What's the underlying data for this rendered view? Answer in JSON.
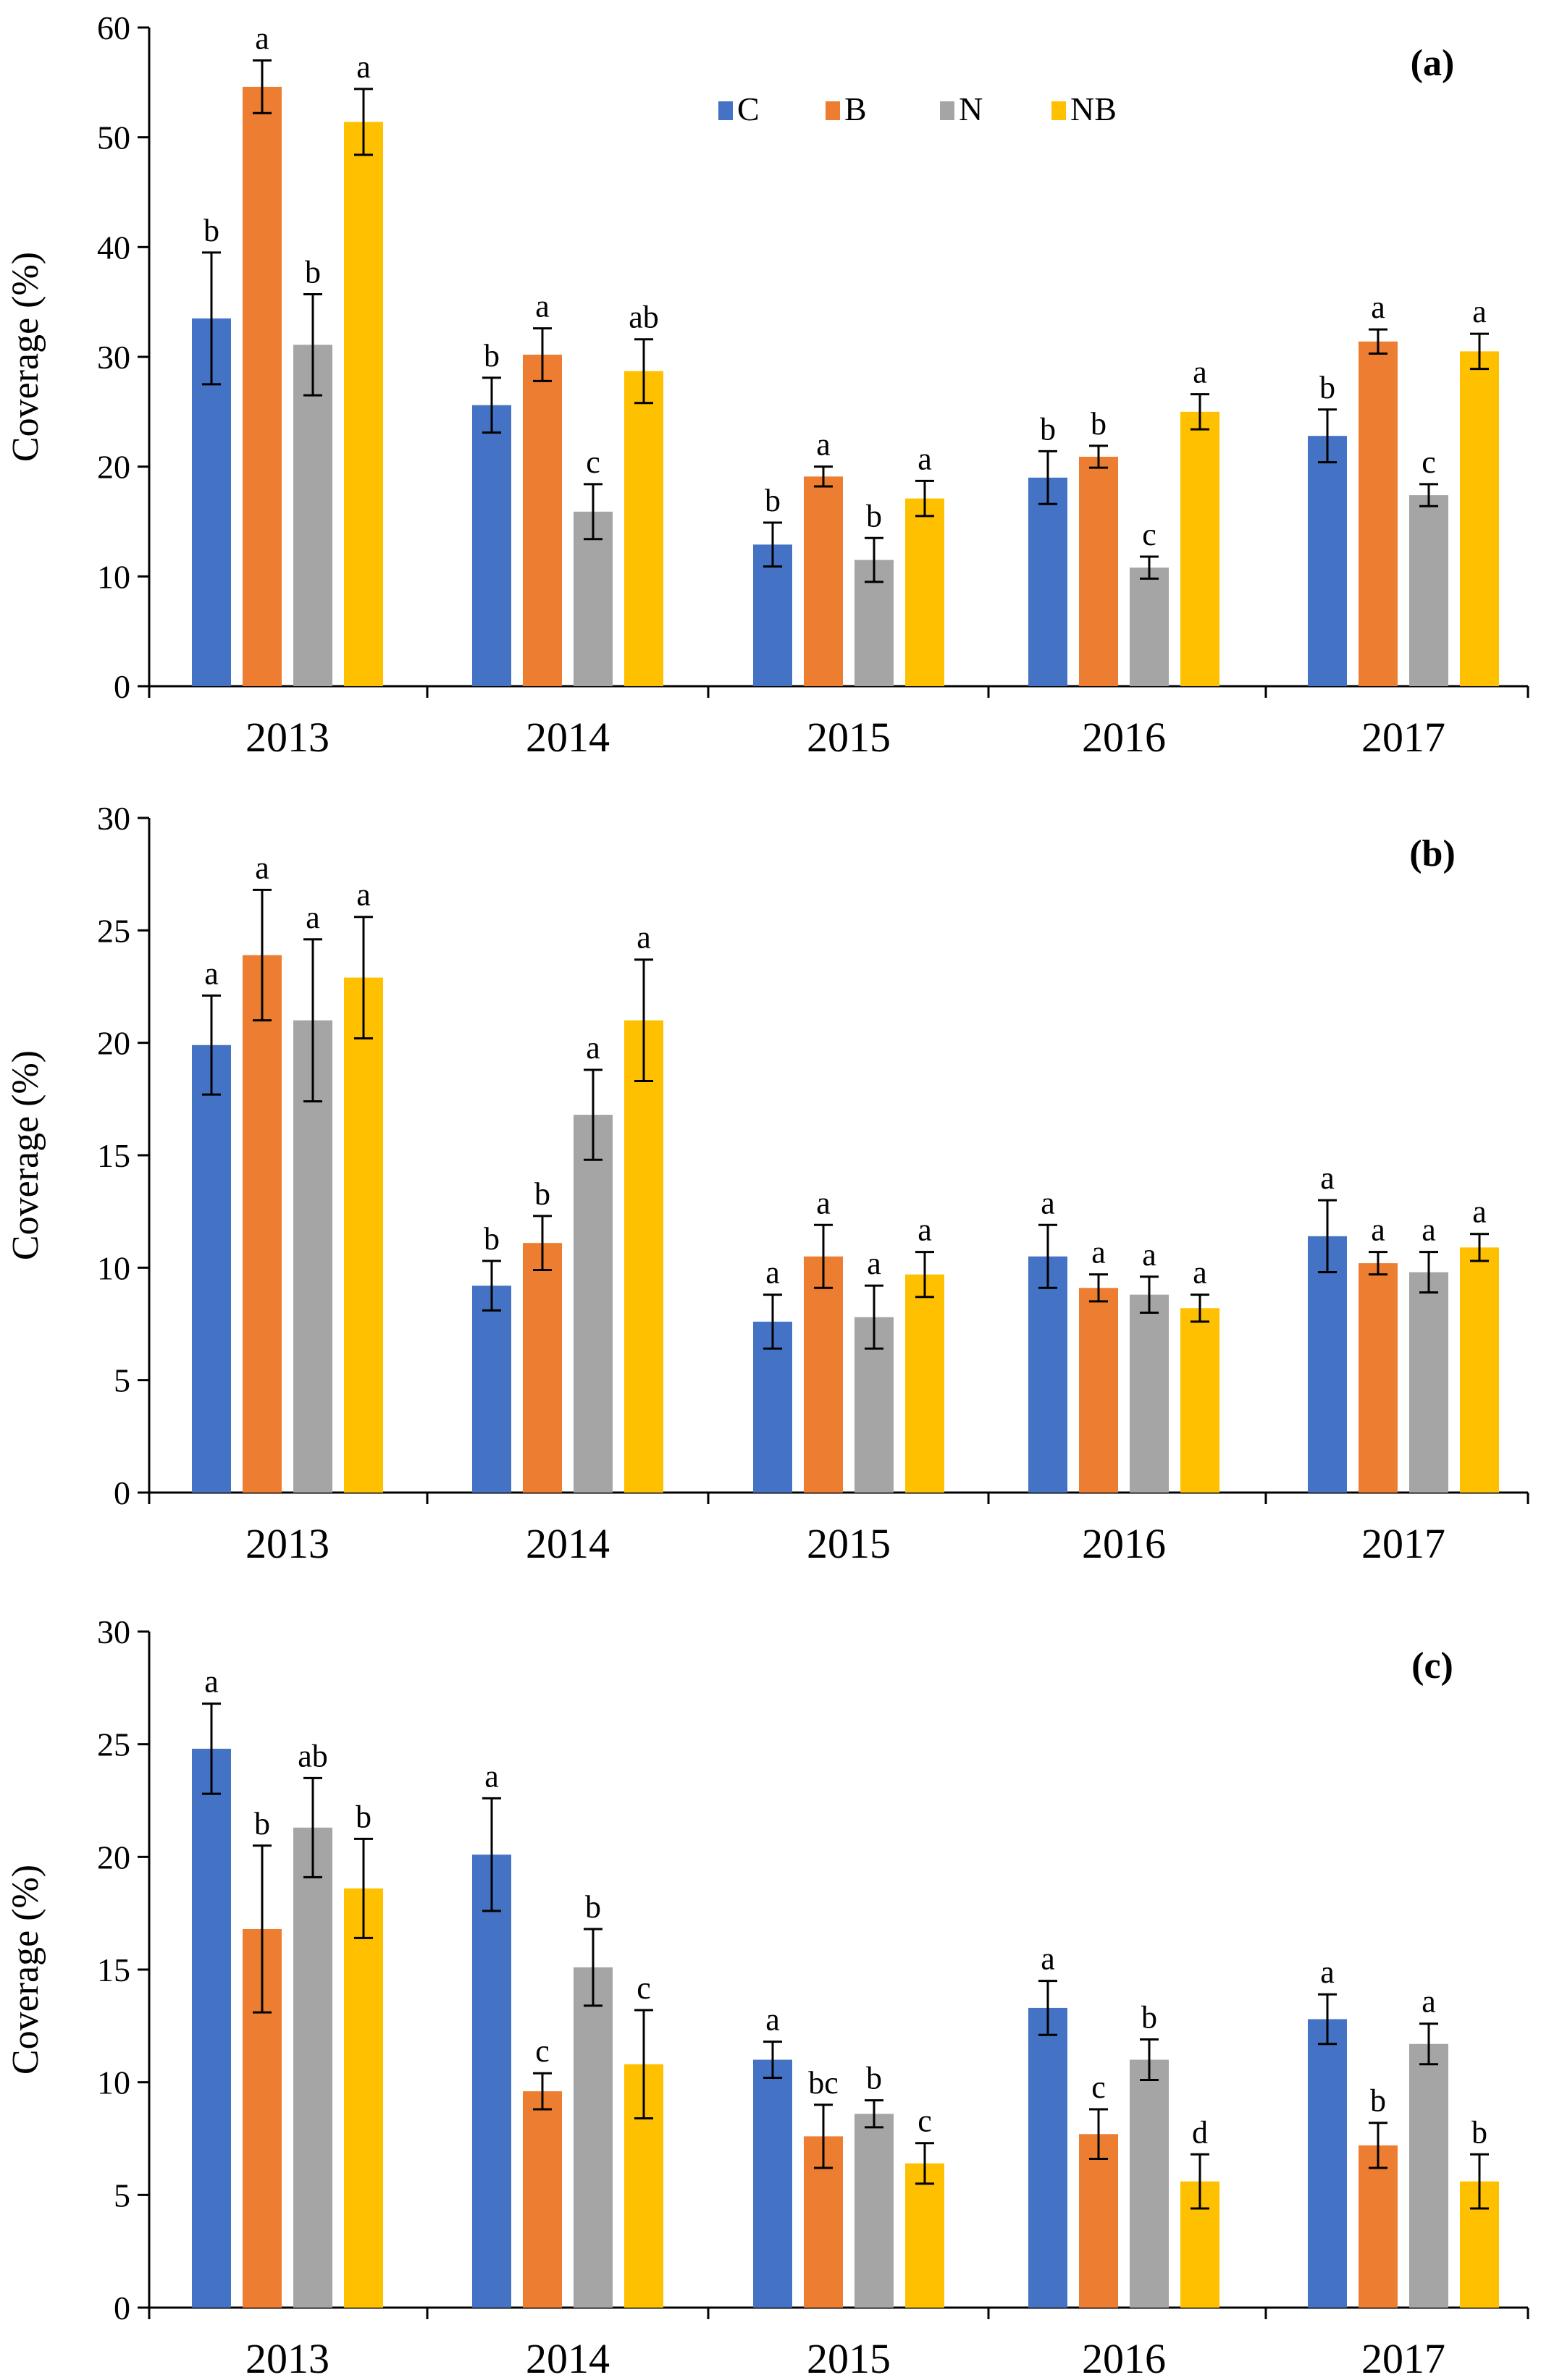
{
  "series_colors": {
    "C": "#4472C4",
    "B": "#ED7D31",
    "N": "#A5A5A5",
    "NB": "#FFC000"
  },
  "legend": [
    "C",
    "B",
    "N",
    "NB"
  ],
  "chart_data": [
    {
      "type": "bar",
      "panel_label": "(a)",
      "ylabel": "Coverage (%)",
      "ylim": [
        0,
        60
      ],
      "yticks": [
        0,
        10,
        20,
        30,
        40,
        50,
        60
      ],
      "categories": [
        "2013",
        "2014",
        "2015",
        "2016",
        "2017"
      ],
      "legend_position": "top-center",
      "series": [
        {
          "name": "C",
          "values": [
            33.5,
            25.6,
            12.9,
            19.0,
            22.8
          ],
          "errors": [
            6.0,
            2.5,
            2.0,
            2.4,
            2.4
          ],
          "letters": [
            "b",
            "b",
            "b",
            "b",
            "b"
          ]
        },
        {
          "name": "B",
          "values": [
            54.6,
            30.2,
            19.1,
            20.9,
            31.4
          ],
          "errors": [
            2.4,
            2.4,
            0.9,
            1.0,
            1.1
          ],
          "letters": [
            "a",
            "a",
            "a",
            "b",
            "a"
          ]
        },
        {
          "name": "N",
          "values": [
            31.1,
            15.9,
            11.5,
            10.8,
            17.4
          ],
          "errors": [
            4.6,
            2.5,
            2.0,
            1.0,
            1.0
          ],
          "letters": [
            "b",
            "c",
            "b",
            "c",
            "c"
          ]
        },
        {
          "name": "NB",
          "values": [
            51.4,
            28.7,
            17.1,
            25.0,
            30.5
          ],
          "errors": [
            3.0,
            2.9,
            1.6,
            1.6,
            1.6
          ],
          "letters": [
            "a",
            "ab",
            "a",
            "a",
            "a"
          ]
        }
      ]
    },
    {
      "type": "bar",
      "panel_label": "(b)",
      "ylabel": "Coverage (%)",
      "ylim": [
        0,
        30
      ],
      "yticks": [
        0,
        5,
        10,
        15,
        20,
        25,
        30
      ],
      "categories": [
        "2013",
        "2014",
        "2015",
        "2016",
        "2017"
      ],
      "series": [
        {
          "name": "C",
          "values": [
            19.9,
            9.2,
            7.6,
            10.5,
            11.4
          ],
          "errors": [
            2.2,
            1.1,
            1.2,
            1.4,
            1.6
          ],
          "letters": [
            "a",
            "b",
            "a",
            "a",
            "a"
          ]
        },
        {
          "name": "B",
          "values": [
            23.9,
            11.1,
            10.5,
            9.1,
            10.2
          ],
          "errors": [
            2.9,
            1.2,
            1.4,
            0.6,
            0.5
          ],
          "letters": [
            "a",
            "b",
            "a",
            "a",
            "a"
          ]
        },
        {
          "name": "N",
          "values": [
            21.0,
            16.8,
            7.8,
            8.8,
            9.8
          ],
          "errors": [
            3.6,
            2.0,
            1.4,
            0.8,
            0.9
          ],
          "letters": [
            "a",
            "a",
            "a",
            "a",
            "a"
          ]
        },
        {
          "name": "NB",
          "values": [
            22.9,
            21.0,
            9.7,
            8.2,
            10.9
          ],
          "errors": [
            2.7,
            2.7,
            1.0,
            0.6,
            0.6
          ],
          "letters": [
            "a",
            "a",
            "a",
            "a",
            "a"
          ]
        }
      ]
    },
    {
      "type": "bar",
      "panel_label": "(c)",
      "ylabel": "Coverage (%)",
      "ylim": [
        0,
        30
      ],
      "yticks": [
        0,
        5,
        10,
        15,
        20,
        25,
        30
      ],
      "categories": [
        "2013",
        "2014",
        "2015",
        "2016",
        "2017"
      ],
      "series": [
        {
          "name": "C",
          "values": [
            24.8,
            20.1,
            11.0,
            13.3,
            12.8
          ],
          "errors": [
            2.0,
            2.5,
            0.8,
            1.2,
            1.1
          ],
          "letters": [
            "a",
            "a",
            "a",
            "a",
            "a"
          ]
        },
        {
          "name": "B",
          "values": [
            16.8,
            9.6,
            7.6,
            7.7,
            7.2
          ],
          "errors": [
            3.7,
            0.8,
            1.4,
            1.1,
            1.0
          ],
          "letters": [
            "b",
            "c",
            "bc",
            "c",
            "b"
          ]
        },
        {
          "name": "N",
          "values": [
            21.3,
            15.1,
            8.6,
            11.0,
            11.7
          ],
          "errors": [
            2.2,
            1.7,
            0.6,
            0.9,
            0.9
          ],
          "letters": [
            "ab",
            "b",
            "b",
            "b",
            "a"
          ]
        },
        {
          "name": "NB",
          "values": [
            18.6,
            10.8,
            6.4,
            5.6,
            5.6
          ],
          "errors": [
            2.2,
            2.4,
            0.9,
            1.2,
            1.2
          ],
          "letters": [
            "b",
            "c",
            "c",
            "d",
            "b"
          ]
        }
      ]
    }
  ]
}
